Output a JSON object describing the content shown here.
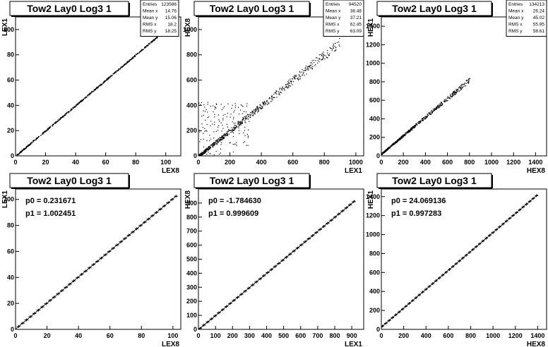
{
  "chart_data": [
    {
      "type": "scatter",
      "title": "Tow2 Lay0 Log3 1",
      "xlabel": "LEX8",
      "ylabel": "LEX1",
      "xlim": [
        0,
        110
      ],
      "ylim": [
        0,
        110
      ],
      "x_ticks": [
        0,
        20,
        40,
        60,
        80,
        100
      ],
      "y_ticks": [
        0,
        20,
        40,
        60,
        80,
        100
      ],
      "stats": [
        {
          "label": "Entries",
          "value": "123586"
        },
        {
          "label": "Mean x",
          "value": "14.76"
        },
        {
          "label": "Mean y",
          "value": "15.06"
        },
        {
          "label": "RMS x",
          "value": "18.2"
        },
        {
          "label": "RMS y",
          "value": "18.25"
        }
      ],
      "trend": {
        "slope": 1.0,
        "intercept": 0.2,
        "x_range": [
          0,
          100
        ],
        "spread": 0.6
      }
    },
    {
      "type": "scatter",
      "title": "Tow2 Lay0 Log3 1",
      "xlabel": "LEX1",
      "ylabel": "HEX8",
      "xlim": [
        0,
        1050
      ],
      "ylim": [
        0,
        1100
      ],
      "x_ticks": [
        0,
        200,
        400,
        600,
        800,
        1000
      ],
      "y_ticks": [
        0,
        200,
        400,
        600,
        800,
        1000
      ],
      "stats": [
        {
          "label": "Entries",
          "value": "94520"
        },
        {
          "label": "Mean x",
          "value": "38.48"
        },
        {
          "label": "Mean y",
          "value": "37.21"
        },
        {
          "label": "RMS x",
          "value": "62.45"
        },
        {
          "label": "RMS y",
          "value": "63.09"
        }
      ],
      "trend": {
        "slope": 1.0,
        "intercept": 0,
        "x_range": [
          0,
          900
        ],
        "spread": 30
      }
    },
    {
      "type": "scatter",
      "title": "Tow2 Lay0 Log3 1",
      "xlabel": "HEX8",
      "ylabel": "HEX1",
      "xlim": [
        0,
        1500
      ],
      "ylim": [
        0,
        1500
      ],
      "x_ticks": [
        0,
        200,
        400,
        600,
        800,
        1000,
        1200,
        1400
      ],
      "y_ticks": [
        0,
        200,
        400,
        600,
        800,
        1000,
        1200,
        1400
      ],
      "stats": [
        {
          "label": "Entries",
          "value": "134213"
        },
        {
          "label": "Mean x",
          "value": "26.24"
        },
        {
          "label": "Mean y",
          "value": "45.02"
        },
        {
          "label": "RMS x",
          "value": "55.95"
        },
        {
          "label": "RMS y",
          "value": "58.61"
        }
      ],
      "trend": {
        "slope": 1.0,
        "intercept": 24,
        "x_range": [
          0,
          800
        ],
        "spread": 20
      }
    },
    {
      "type": "line",
      "title": "Tow2 Lay0 Log3 1",
      "xlabel": "LEX8",
      "ylabel": "LEX1",
      "xlim": [
        0,
        105
      ],
      "ylim": [
        0,
        108
      ],
      "x_ticks": [
        0,
        20,
        40,
        60,
        80,
        100
      ],
      "y_ticks": [
        0,
        20,
        40,
        60,
        80,
        100
      ],
      "fit": [
        {
          "label": "p0",
          "value": "0.231671"
        },
        {
          "label": "p1",
          "value": "1.002451"
        }
      ],
      "profile": {
        "x_range": [
          2,
          102
        ],
        "step": 2.5,
        "err": 0.8
      }
    },
    {
      "type": "line",
      "title": "Tow2 Lay0 Log3 1",
      "xlabel": "LEX1",
      "ylabel": "HEX8",
      "xlim": [
        0,
        970
      ],
      "ylim": [
        0,
        1000
      ],
      "x_ticks": [
        0,
        100,
        200,
        300,
        400,
        500,
        600,
        700,
        800,
        900
      ],
      "y_ticks": [
        0,
        100,
        200,
        300,
        400,
        500,
        600,
        700,
        800,
        900
      ],
      "fit": [
        {
          "label": "p0",
          "value": "-1.784630"
        },
        {
          "label": "p1",
          "value": "0.999609"
        }
      ],
      "profile": {
        "x_range": [
          10,
          920
        ],
        "step": 22,
        "err": 12
      }
    },
    {
      "type": "line",
      "title": "Tow2 Lay0 Log3 1",
      "xlabel": "HEX8",
      "ylabel": "HEX1",
      "xlim": [
        0,
        1480
      ],
      "ylim": [
        0,
        1480
      ],
      "x_ticks": [
        0,
        200,
        400,
        600,
        800,
        1000,
        1200,
        1400
      ],
      "y_ticks": [
        0,
        200,
        400,
        600,
        800,
        1000,
        1200,
        1400
      ],
      "fit": [
        {
          "label": "p0",
          "value": "24.069136"
        },
        {
          "label": "p1",
          "value": "0.997283"
        }
      ],
      "profile": {
        "x_range": [
          10,
          1400
        ],
        "step": 30,
        "err": 15
      }
    }
  ]
}
